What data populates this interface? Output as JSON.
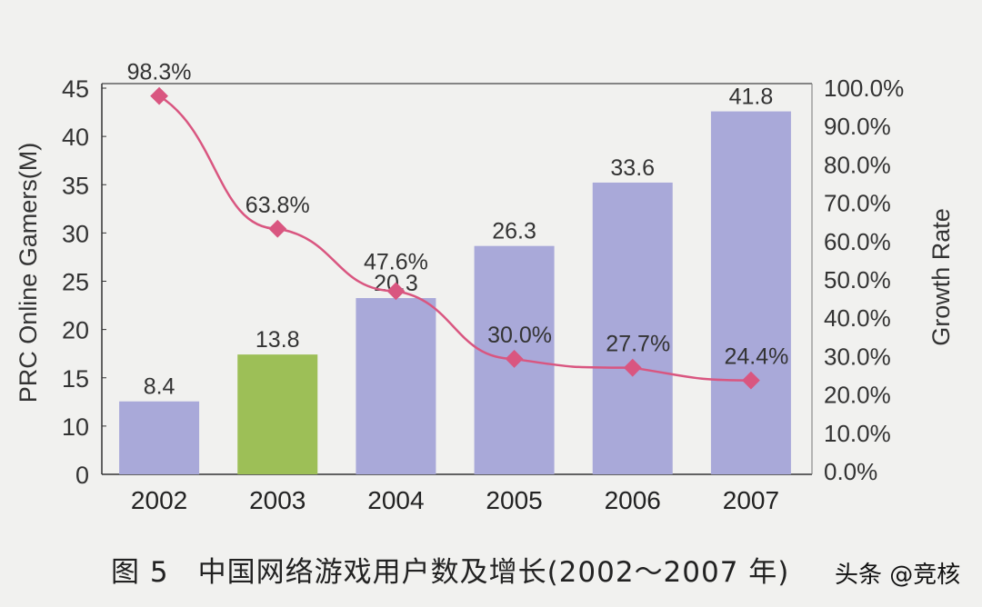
{
  "chart_data": {
    "type": "bar",
    "categories": [
      "2002",
      "2003",
      "2004",
      "2005",
      "2006",
      "2007"
    ],
    "series": [
      {
        "values": [
          8.4,
          13.8,
          20.3,
          26.3,
          33.6,
          41.8
        ],
        "axis": "left",
        "type": "bar",
        "labels": [
          "8.4",
          "13.8",
          "20.3",
          "26.3",
          "33.6",
          "41.8"
        ]
      },
      {
        "values": [
          98.3,
          63.8,
          47.6,
          30.0,
          27.7,
          24.4
        ],
        "axis": "right",
        "type": "line",
        "labels": [
          "98.3%",
          "63.8%",
          "47.6%",
          "30.0%",
          "27.7%",
          "24.4%"
        ]
      }
    ],
    "ylabel": "PRC Online Gamers(M)",
    "y2label": "Growth Rate",
    "ylim": [
      0,
      45
    ],
    "y2lim": [
      0,
      100
    ],
    "yticks": [
      "0",
      "10",
      "15",
      "20",
      "25",
      "30",
      "35",
      "40",
      "45"
    ],
    "y2ticks": [
      "0.0%",
      "10.0%",
      "20.0%",
      "30.0%",
      "40.0%",
      "50.0%",
      "60.0%",
      "70.0%",
      "80.0%",
      "90.0%",
      "100.0%"
    ],
    "grid": false,
    "colors": {
      "bar": "#a9a9d9",
      "highlight_bar": "#9dbf57",
      "line": "#d95680",
      "highlight_index": 1
    }
  },
  "caption": "图 5　中国网络游戏用户数及增长(2002～2007 年)",
  "watermark": "头条 @竞核"
}
